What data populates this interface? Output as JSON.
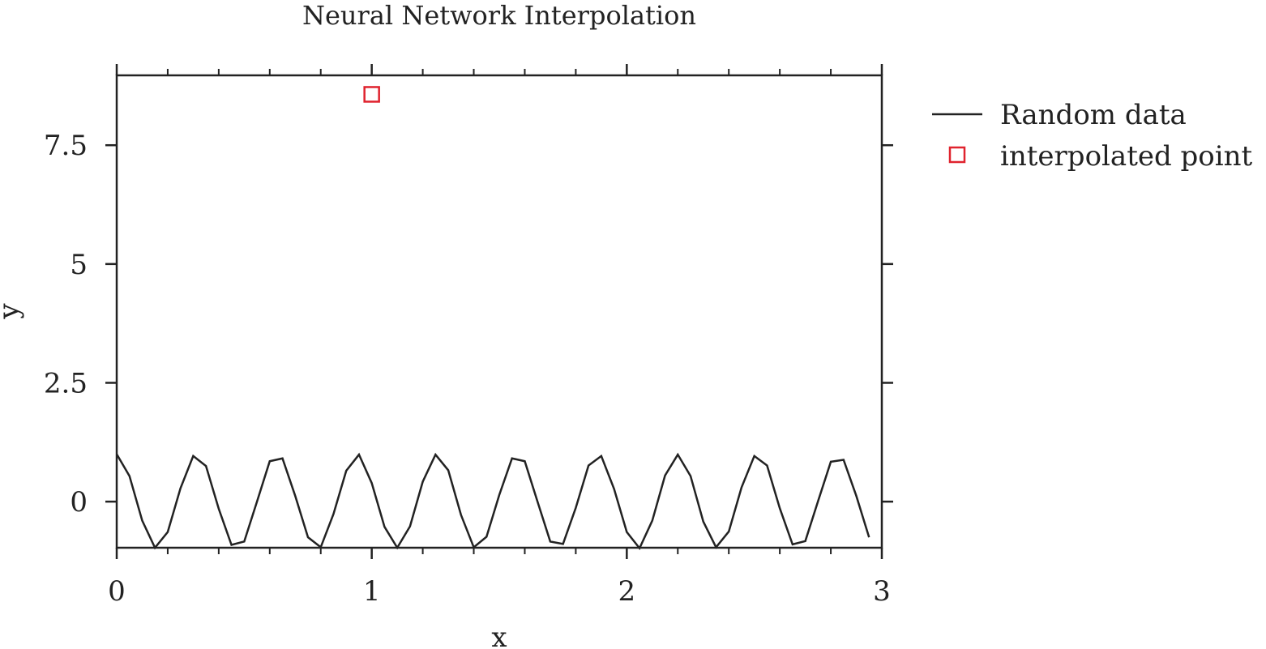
{
  "chart_data": {
    "type": "line",
    "title": "Neural Network Interpolation",
    "xlabel": "x",
    "ylabel": "y",
    "xlim": [
      0,
      3
    ],
    "ylim": [
      -0.97,
      8.97
    ],
    "x_ticks": [
      0,
      1,
      2,
      3
    ],
    "x_tick_labels": [
      "0",
      "1",
      "2",
      "3"
    ],
    "y_ticks": [
      0,
      2.5,
      5,
      7.5
    ],
    "y_tick_labels": [
      "0",
      "2.5",
      "5",
      "7.5"
    ],
    "grid": false,
    "legend_position": "outside-right-top",
    "series": [
      {
        "name": "Random data",
        "kind": "line",
        "color": "#222222",
        "x": [
          0,
          0.05,
          0.1,
          0.15,
          0.2,
          0.25,
          0.3,
          0.35,
          0.4,
          0.45,
          0.5,
          0.55,
          0.6,
          0.65,
          0.7,
          0.75,
          0.8,
          0.85,
          0.9,
          0.95,
          1.0,
          1.05,
          1.1,
          1.15,
          1.2,
          1.25,
          1.3,
          1.35,
          1.4,
          1.45,
          1.5,
          1.55,
          1.6,
          1.65,
          1.7,
          1.75,
          1.8,
          1.85,
          1.9,
          1.95,
          2.0,
          2.05,
          2.1,
          2.15,
          2.2,
          2.25,
          2.3,
          2.35,
          2.4,
          2.45,
          2.5,
          2.55,
          2.6,
          2.65,
          2.7,
          2.75,
          2.8,
          2.85,
          2.9,
          2.95
        ],
        "y": [
          1.0,
          0.54,
          -0.4,
          -0.97,
          -0.64,
          0.28,
          0.96,
          0.75,
          -0.15,
          -0.91,
          -0.84,
          0.0,
          0.85,
          0.91,
          0.12,
          -0.75,
          -0.96,
          -0.26,
          0.65,
          0.99,
          0.39,
          -0.53,
          -0.97,
          -0.52,
          0.42,
          0.99,
          0.66,
          -0.28,
          -0.96,
          -0.74,
          0.14,
          0.91,
          0.85,
          0.0,
          -0.84,
          -0.89,
          -0.13,
          0.76,
          0.96,
          0.27,
          -0.64,
          -0.98,
          -0.4,
          0.55,
          0.99,
          0.54,
          -0.42,
          -0.96,
          -0.63,
          0.3,
          0.96,
          0.76,
          -0.14,
          -0.9,
          -0.83,
          0.01,
          0.84,
          0.88,
          0.12,
          -0.75
        ]
      },
      {
        "name": "interpolated point",
        "kind": "marker",
        "marker": "square",
        "color": "#e0232e",
        "x": [
          1.0
        ],
        "y": [
          8.57
        ]
      }
    ]
  }
}
